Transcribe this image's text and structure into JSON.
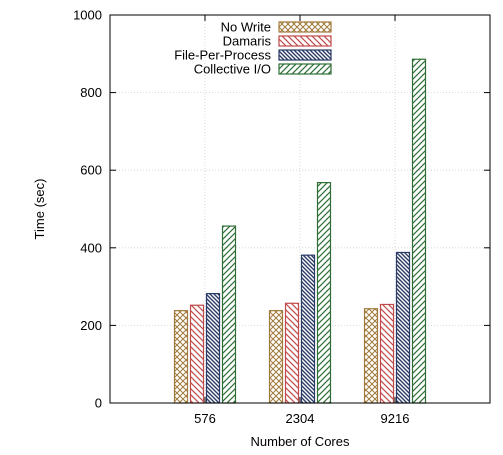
{
  "chart_data": {
    "type": "bar",
    "title": "",
    "xlabel": "Number of Cores",
    "ylabel": "Time (sec)",
    "categories": [
      "576",
      "2304",
      "9216"
    ],
    "ylim": [
      0,
      1000
    ],
    "yticks": [
      0,
      200,
      400,
      600,
      800,
      1000
    ],
    "grid": true,
    "legend_position": "top",
    "series": [
      {
        "name": "No Write",
        "color": "#a07a3a",
        "pattern": "crosshatch",
        "values": [
          238,
          238,
          243
        ]
      },
      {
        "name": "Damaris",
        "color": "#c04a4a",
        "pattern": "diagonal-down",
        "values": [
          252,
          257,
          254
        ]
      },
      {
        "name": "File-Per-Process",
        "color": "#2a3a66",
        "pattern": "diagonal-down-dense",
        "values": [
          282,
          381,
          388
        ]
      },
      {
        "name": "Collective I/O",
        "color": "#2e6e36",
        "pattern": "diagonal-up",
        "values": [
          456,
          568,
          886
        ]
      }
    ]
  }
}
